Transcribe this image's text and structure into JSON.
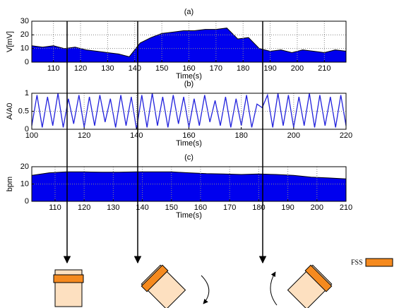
{
  "chart_data": [
    {
      "type": "area",
      "title": "(a)",
      "xlabel": "Time(s)",
      "ylabel": "V[mV]",
      "color": "#0000ee",
      "grid": true,
      "x": [
        102,
        106,
        110,
        114,
        118,
        122,
        126,
        130,
        134,
        138,
        142,
        146,
        150,
        154,
        158,
        162,
        166,
        170,
        174,
        178,
        182,
        186,
        190,
        194,
        198,
        202,
        206,
        210,
        214,
        218
      ],
      "values": [
        12,
        11,
        12,
        10,
        11,
        9,
        8,
        7,
        6,
        4,
        14,
        18,
        21,
        22,
        23,
        23,
        24,
        24,
        25,
        17,
        18,
        10,
        8,
        9,
        7,
        9,
        8,
        7,
        9,
        8
      ],
      "xlim": [
        102,
        218
      ],
      "xticks": [
        110,
        120,
        130,
        140,
        150,
        160,
        170,
        180,
        190,
        200,
        210
      ],
      "ylim": [
        0,
        30
      ],
      "yticks": [
        0,
        10,
        20,
        30
      ]
    },
    {
      "type": "line",
      "title": "(b)",
      "xlabel": "Time(s)",
      "ylabel": "A/A0",
      "color": "#2222dd",
      "grid": true,
      "x": [
        100,
        102,
        104,
        106,
        108,
        110,
        112,
        114,
        116,
        118,
        120,
        122,
        124,
        126,
        128,
        130,
        132,
        134,
        136,
        138,
        140,
        142,
        144,
        146,
        148,
        150,
        152,
        154,
        156,
        158,
        160,
        162,
        164,
        166,
        168,
        170,
        172,
        174,
        176,
        178,
        180,
        182,
        184,
        186,
        188,
        190,
        192,
        194,
        196,
        198,
        200,
        202,
        204,
        206,
        208,
        210,
        212,
        214,
        216,
        218,
        220
      ],
      "values": [
        0.1,
        0.95,
        0.05,
        0.9,
        0.1,
        1,
        0.05,
        0.85,
        0.15,
        0.95,
        0.05,
        0.9,
        0.1,
        0.95,
        0.2,
        0.85,
        0.05,
        0.95,
        0.1,
        0.9,
        0,
        0.95,
        0.05,
        1,
        0.1,
        0.9,
        0.05,
        0.95,
        0.15,
        0.9,
        0.05,
        0.85,
        0.1,
        0.95,
        0.2,
        0.8,
        0.1,
        0.9,
        0.05,
        0.85,
        0.1,
        0.95,
        0.05,
        0.7,
        0.6,
        0.95,
        0.05,
        1,
        0.1,
        0.95,
        0.05,
        0.9,
        0.1,
        1,
        0.05,
        0.95,
        0.1,
        0.9,
        0.05,
        0.95,
        0.1
      ],
      "xlim": [
        100,
        220
      ],
      "xticks": [
        100,
        120,
        140,
        160,
        180,
        200,
        220
      ],
      "ylim": [
        0,
        1
      ],
      "yticks": [
        0,
        0.5,
        1
      ]
    },
    {
      "type": "area",
      "title": "(c)",
      "xlabel": "Time(s)",
      "ylabel": "bpm",
      "color": "#0000ee",
      "grid": true,
      "x": [
        102,
        108,
        114,
        120,
        126,
        132,
        138,
        144,
        150,
        156,
        162,
        168,
        174,
        180,
        186,
        192,
        198,
        204,
        210
      ],
      "values": [
        15,
        16.5,
        17,
        17,
        16.8,
        16.8,
        17,
        17,
        17,
        16.5,
        16,
        15.8,
        15.5,
        15.8,
        15.5,
        15,
        14,
        13.5,
        13
      ],
      "xlim": [
        102,
        210
      ],
      "xticks": [
        110,
        120,
        130,
        140,
        150,
        160,
        170,
        180,
        190,
        200,
        210
      ],
      "ylim": [
        0,
        20
      ],
      "yticks": [
        0,
        10,
        20
      ]
    }
  ],
  "diagram": {
    "legend_label": "FSS"
  }
}
